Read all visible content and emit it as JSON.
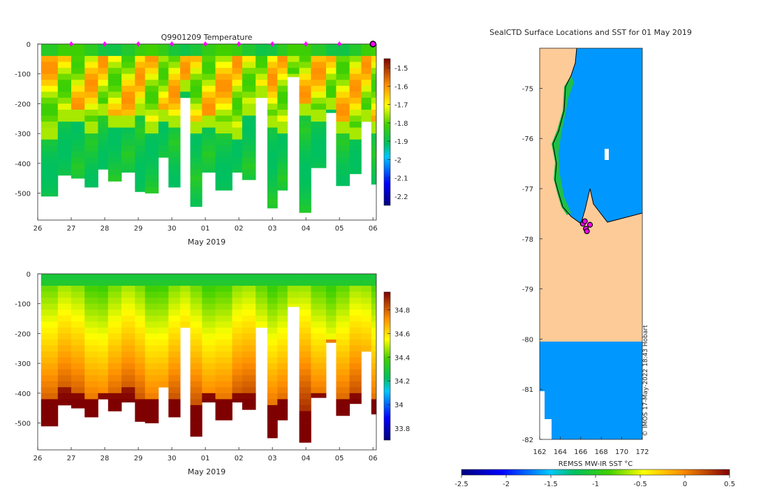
{
  "chart_data": [
    {
      "type": "heatmap",
      "id": "temperature",
      "title": "Q9901209  Temperature",
      "xlabel": "May 2019",
      "ylabel": "",
      "xlim": [
        26,
        36.1
      ],
      "ylim": [
        -590,
        0
      ],
      "xticks": [
        26,
        27,
        28,
        29,
        30,
        31,
        32,
        33,
        34,
        35,
        36
      ],
      "xtick_labels": [
        "26",
        "27",
        "28",
        "29",
        "30",
        "01",
        "02",
        "03",
        "04",
        "05",
        "06"
      ],
      "yticks": [
        0,
        -100,
        -200,
        -300,
        -400,
        -500
      ],
      "ytick_labels": [
        "0",
        "-100",
        "-200",
        "-300",
        "-400",
        "-500"
      ],
      "colorbar": {
        "min": -2.25,
        "max": -1.45,
        "ticks": [
          -1.5,
          -1.6,
          -1.7,
          -1.8,
          -1.9,
          -2,
          -2.1,
          -2.2
        ],
        "tick_labels": [
          "-1.5",
          "-1.6",
          "-1.7",
          "-1.8",
          "-1.9",
          "-2",
          "-2.1",
          "-2.2"
        ]
      },
      "markers_x": [
        27,
        28,
        29,
        30,
        31,
        32,
        33,
        34,
        35
      ],
      "last_marker_x": 36
    },
    {
      "type": "heatmap",
      "id": "salinity",
      "title": "",
      "xlabel": "May 2019",
      "ylabel": "",
      "xlim": [
        26,
        36.1
      ],
      "ylim": [
        -590,
        0
      ],
      "xticks": [
        26,
        27,
        28,
        29,
        30,
        31,
        32,
        33,
        34,
        35,
        36
      ],
      "xtick_labels": [
        "26",
        "27",
        "28",
        "29",
        "30",
        "01",
        "02",
        "03",
        "04",
        "05",
        "06"
      ],
      "yticks": [
        0,
        -100,
        -200,
        -300,
        -400,
        -500
      ],
      "ytick_labels": [
        "0",
        "-100",
        "-200",
        "-300",
        "-400",
        "-500"
      ],
      "colorbar": {
        "min": 33.7,
        "max": 34.95,
        "ticks": [
          34.8,
          34.6,
          34.4,
          34.2,
          34,
          33.8
        ],
        "tick_labels": [
          "34.8",
          "34.6",
          "34.4",
          "34.2",
          "34",
          "33.8"
        ]
      }
    },
    {
      "type": "map",
      "id": "sst_map",
      "title": "SealCTD Surface Locations and SST for 01 May 2019",
      "xlim": [
        162,
        172
      ],
      "ylim": [
        -82,
        -74.2
      ],
      "xticks": [
        162,
        164,
        166,
        168,
        170,
        172
      ],
      "xtick_labels": [
        "162",
        "164",
        "166",
        "168",
        "170",
        "172"
      ],
      "yticks": [
        -75,
        -76,
        -77,
        -78,
        -79,
        -80,
        -81,
        -82
      ],
      "ytick_labels": [
        "-75",
        "-76",
        "-77",
        "-78",
        "-79",
        "-80",
        "-81",
        "-82"
      ],
      "sst_value": -1.8,
      "locations": [
        [
          166.2,
          -77.7
        ],
        [
          166.5,
          -77.8
        ],
        [
          166.6,
          -77.85
        ],
        [
          166.9,
          -77.72
        ],
        [
          166.4,
          -77.65
        ]
      ],
      "colorbar": {
        "label": "REMSS MW-IR SST °C",
        "min": -2.5,
        "max": 0.5,
        "ticks": [
          -2.5,
          -2,
          -1.5,
          -1,
          -0.5,
          0,
          0.5
        ],
        "tick_labels": [
          "-2.5",
          "-2",
          "-1.5",
          "-1",
          "-0.5",
          "0",
          "0.5"
        ]
      }
    }
  ],
  "credit": "© IMOS 17-May-2022 18:43 Hobart",
  "profiles": [
    {
      "t": 26.1,
      "depth": 510,
      "m": 275,
      "s": 410
    },
    {
      "t": 26.6,
      "depth": 440,
      "m": 220,
      "s": 370
    },
    {
      "t": 27.0,
      "depth": 450,
      "m": 210,
      "s": 390
    },
    {
      "t": 27.4,
      "depth": 480,
      "m": 260,
      "s": 400
    },
    {
      "t": 27.8,
      "depth": 420,
      "m": 200,
      "s": 380
    },
    {
      "t": 28.1,
      "depth": 460,
      "m": 230,
      "s": 390
    },
    {
      "t": 28.5,
      "depth": 430,
      "m": 240,
      "s": 370
    },
    {
      "t": 28.9,
      "depth": 495,
      "m": 200,
      "s": 410
    },
    {
      "t": 29.2,
      "depth": 500,
      "m": 250,
      "s": 400
    },
    {
      "t": 29.6,
      "depth": 380,
      "m": 210,
      "s": 360
    },
    {
      "t": 29.9,
      "depth": 480,
      "m": 230,
      "s": 400
    },
    {
      "t": 30.25,
      "depth": 180,
      "m": 120,
      "s": 160
    },
    {
      "t": 30.55,
      "depth": 545,
      "m": 260,
      "s": 420
    },
    {
      "t": 30.9,
      "depth": 430,
      "m": 240,
      "s": 390
    },
    {
      "t": 31.3,
      "depth": 490,
      "m": 260,
      "s": 400
    },
    {
      "t": 31.8,
      "depth": 430,
      "m": 280,
      "s": 380
    },
    {
      "t": 32.1,
      "depth": 455,
      "m": 200,
      "s": 390
    },
    {
      "t": 32.5,
      "depth": 180,
      "m": 130,
      "s": 170
    },
    {
      "t": 32.85,
      "depth": 550,
      "m": 240,
      "s": 430
    },
    {
      "t": 33.15,
      "depth": 490,
      "m": 260,
      "s": 410
    },
    {
      "t": 33.45,
      "depth": 110,
      "m": 90,
      "s": 100
    },
    {
      "t": 33.8,
      "depth": 565,
      "m": 200,
      "s": 440
    },
    {
      "t": 34.15,
      "depth": 415,
      "m": 210,
      "s": 380
    },
    {
      "t": 34.6,
      "depth": 230,
      "m": 180,
      "s": 210
    },
    {
      "t": 34.9,
      "depth": 475,
      "m": 260,
      "s": 400
    },
    {
      "t": 35.3,
      "depth": 435,
      "m": 270,
      "s": 390
    },
    {
      "t": 35.65,
      "depth": 260,
      "m": 220,
      "s": 240
    },
    {
      "t": 35.95,
      "depth": 470,
      "m": 250,
      "s": 400
    }
  ]
}
